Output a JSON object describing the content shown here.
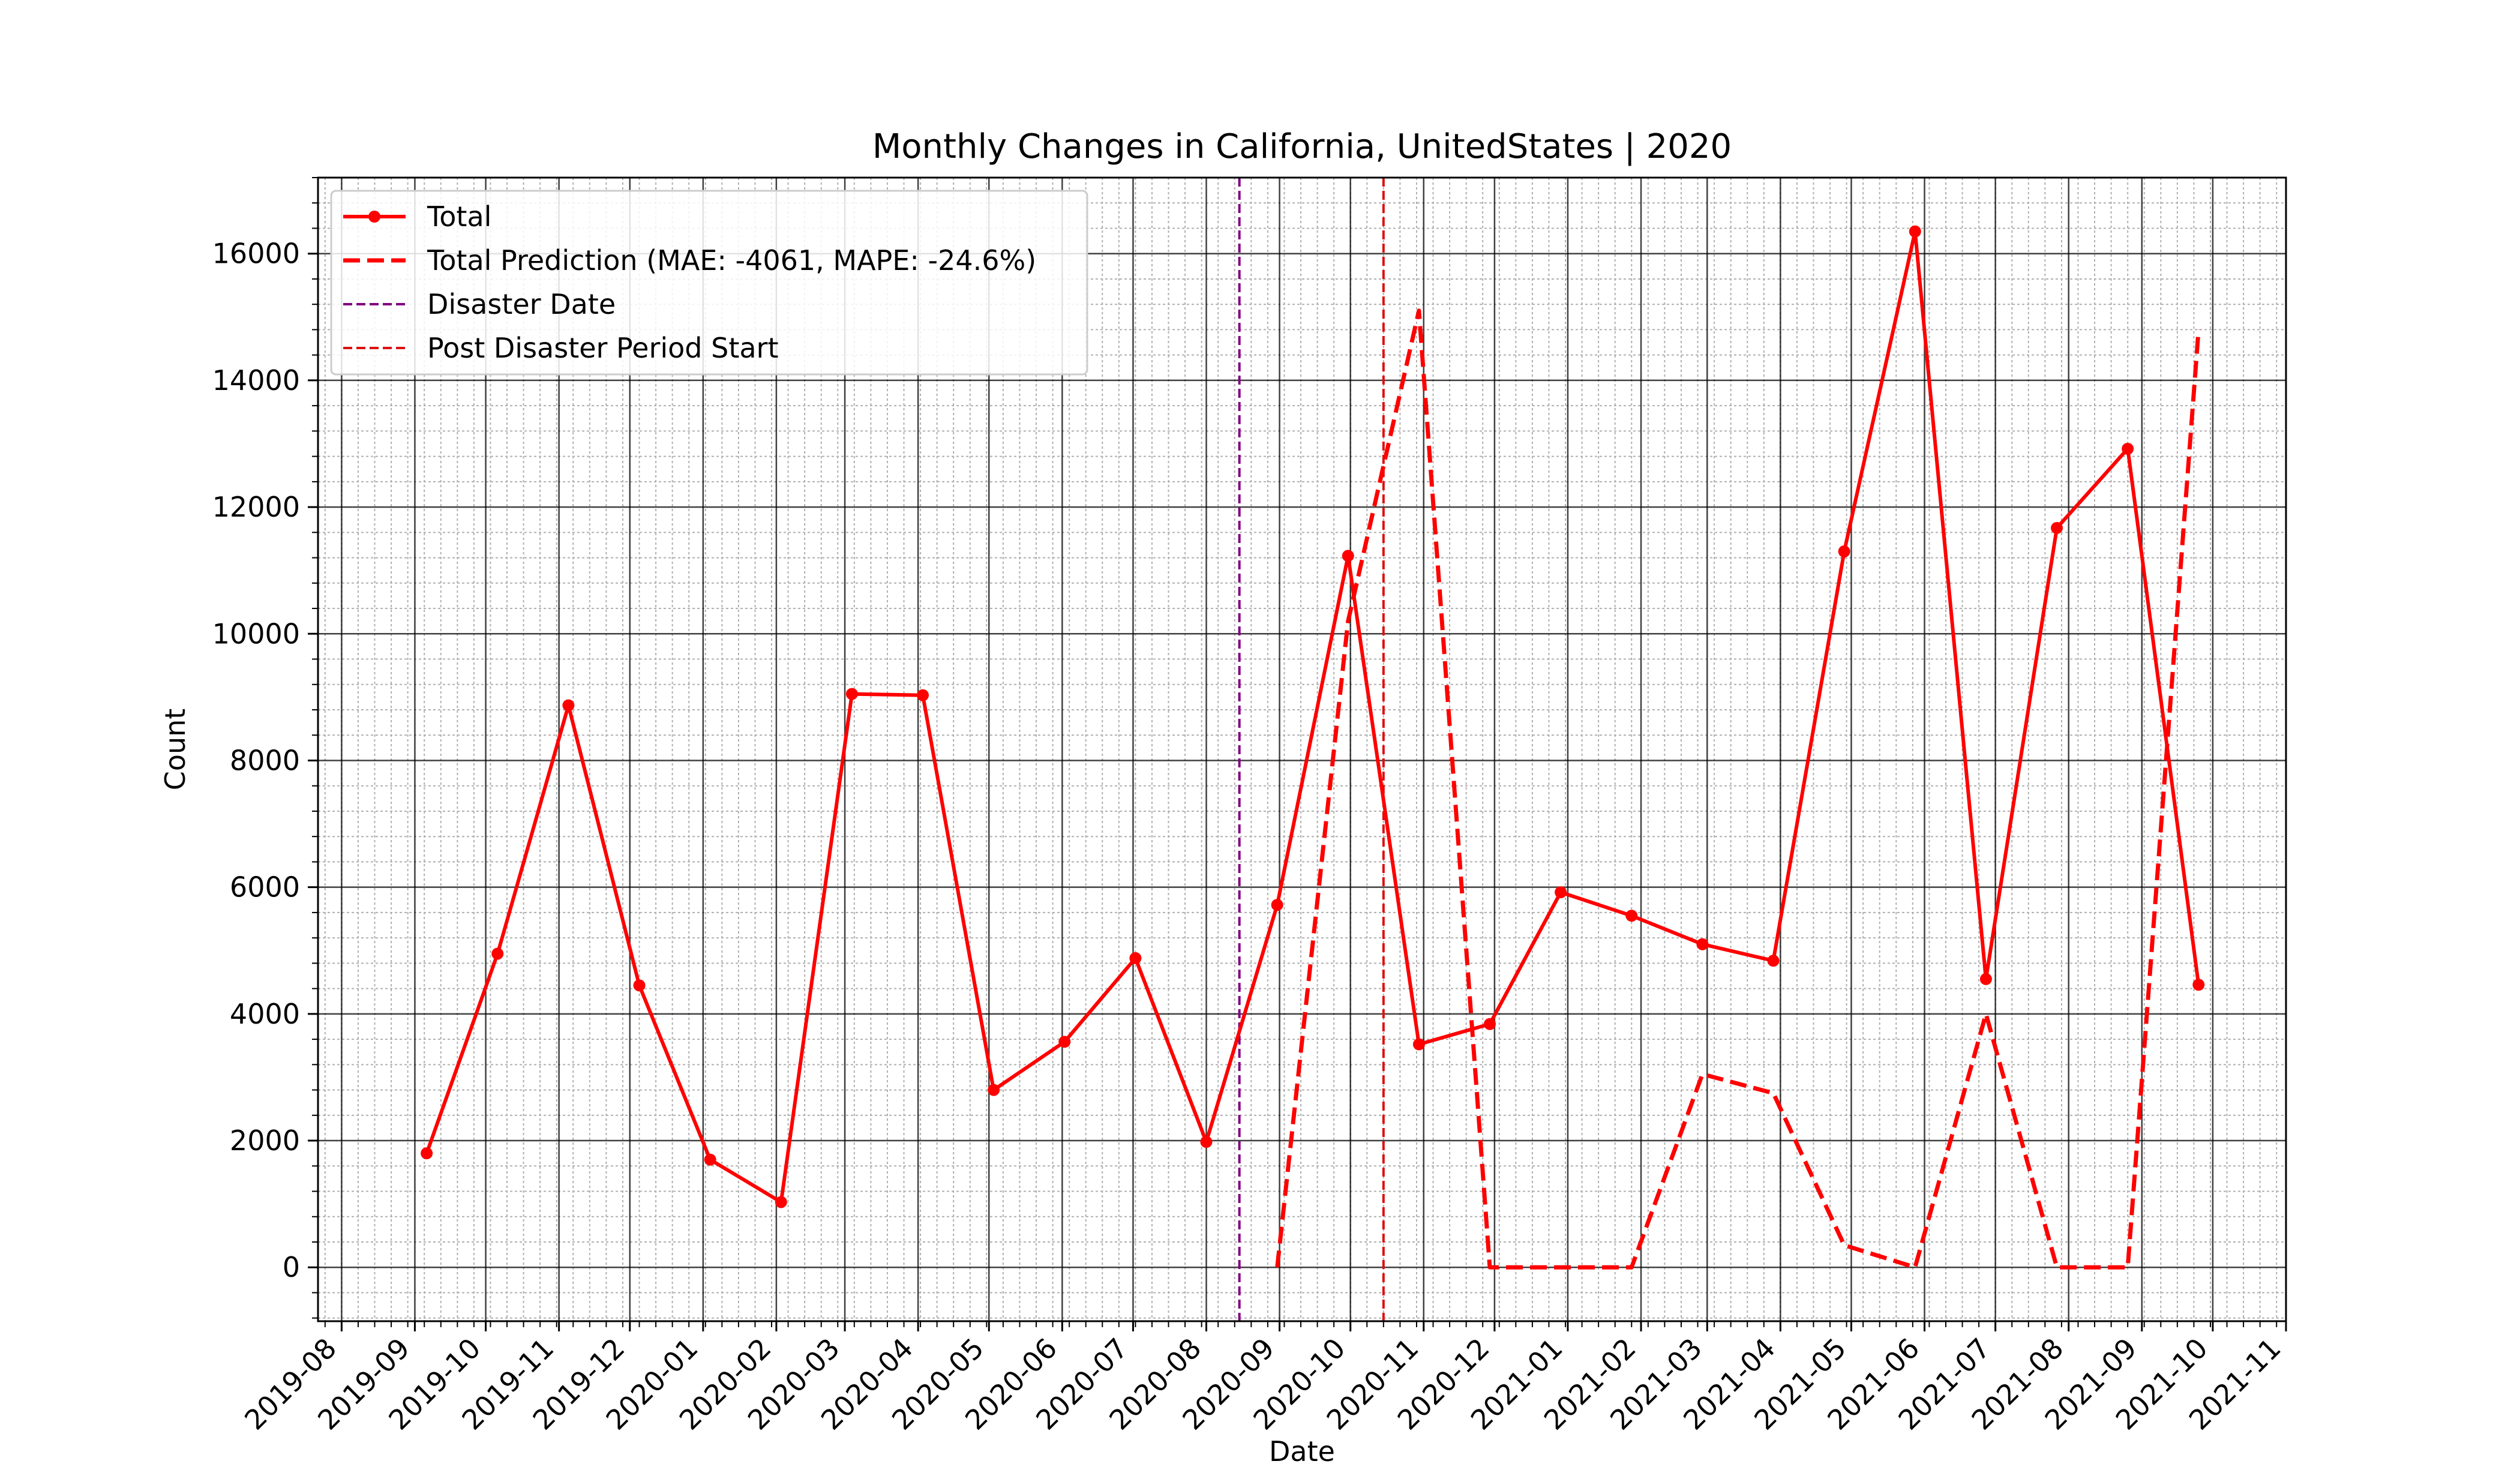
{
  "chart_data": {
    "type": "line",
    "title": "Monthly Changes in California, UnitedStates | 2020",
    "xlabel": "Date",
    "ylabel": "Count",
    "ylim": [
      -850,
      17200
    ],
    "xlim": [
      "2019-07-22",
      "2021-11-01"
    ],
    "yticks": [
      0,
      2000,
      4000,
      6000,
      8000,
      10000,
      12000,
      14000,
      16000
    ],
    "xticks": [
      "2019-08",
      "2019-09",
      "2019-10",
      "2019-11",
      "2019-12",
      "2020-01",
      "2020-02",
      "2020-03",
      "2020-04",
      "2020-05",
      "2020-06",
      "2020-07",
      "2020-08",
      "2020-09",
      "2020-10",
      "2020-11",
      "2020-12",
      "2021-01",
      "2021-02",
      "2021-03",
      "2021-04",
      "2021-05",
      "2021-06",
      "2021-07",
      "2021-08",
      "2021-09",
      "2021-10",
      "2021-11"
    ],
    "grid": true,
    "legend_position": "upper-left",
    "series": [
      {
        "name": "Total",
        "style": "solid-markers",
        "color": "#ff0000",
        "x": [
          "2019-09-06",
          "2019-10-06",
          "2019-11-05",
          "2019-12-05",
          "2020-01-04",
          "2020-02-03",
          "2020-03-04",
          "2020-04-03",
          "2020-05-03",
          "2020-06-02",
          "2020-07-02",
          "2020-08-01",
          "2020-08-31",
          "2020-09-30",
          "2020-10-30",
          "2020-11-29",
          "2020-12-29",
          "2021-01-28",
          "2021-02-27",
          "2021-03-29",
          "2021-04-28",
          "2021-05-28",
          "2021-06-27",
          "2021-07-27",
          "2021-08-26",
          "2021-09-25"
        ],
        "values": [
          1800,
          4950,
          8870,
          4450,
          1700,
          1030,
          9050,
          9030,
          2800,
          3560,
          4880,
          1980,
          5720,
          11230,
          3520,
          3840,
          5920,
          5550,
          5100,
          4840,
          11300,
          16350,
          4550,
          11670,
          12920,
          4460
        ]
      },
      {
        "name": "Total Prediction (MAE: -4061, MAPE: -24.6%)",
        "style": "dashed",
        "color": "#ff0000",
        "x": [
          "2020-08-31",
          "2020-09-30",
          "2020-10-30",
          "2020-11-29",
          "2020-12-29",
          "2021-01-28",
          "2021-02-27",
          "2021-03-29",
          "2021-04-28",
          "2021-05-28",
          "2021-06-27",
          "2021-07-27",
          "2021-08-26",
          "2021-09-25"
        ],
        "values": [
          0,
          10200,
          15100,
          0,
          0,
          0,
          3050,
          2750,
          350,
          0,
          4000,
          0,
          0,
          14800
        ]
      }
    ],
    "vlines": [
      {
        "name": "Disaster Date",
        "x": "2020-08-15",
        "color": "#800080"
      },
      {
        "name": "Post Disaster Period Start",
        "x": "2020-10-15",
        "color": "#dd1111"
      }
    ]
  }
}
